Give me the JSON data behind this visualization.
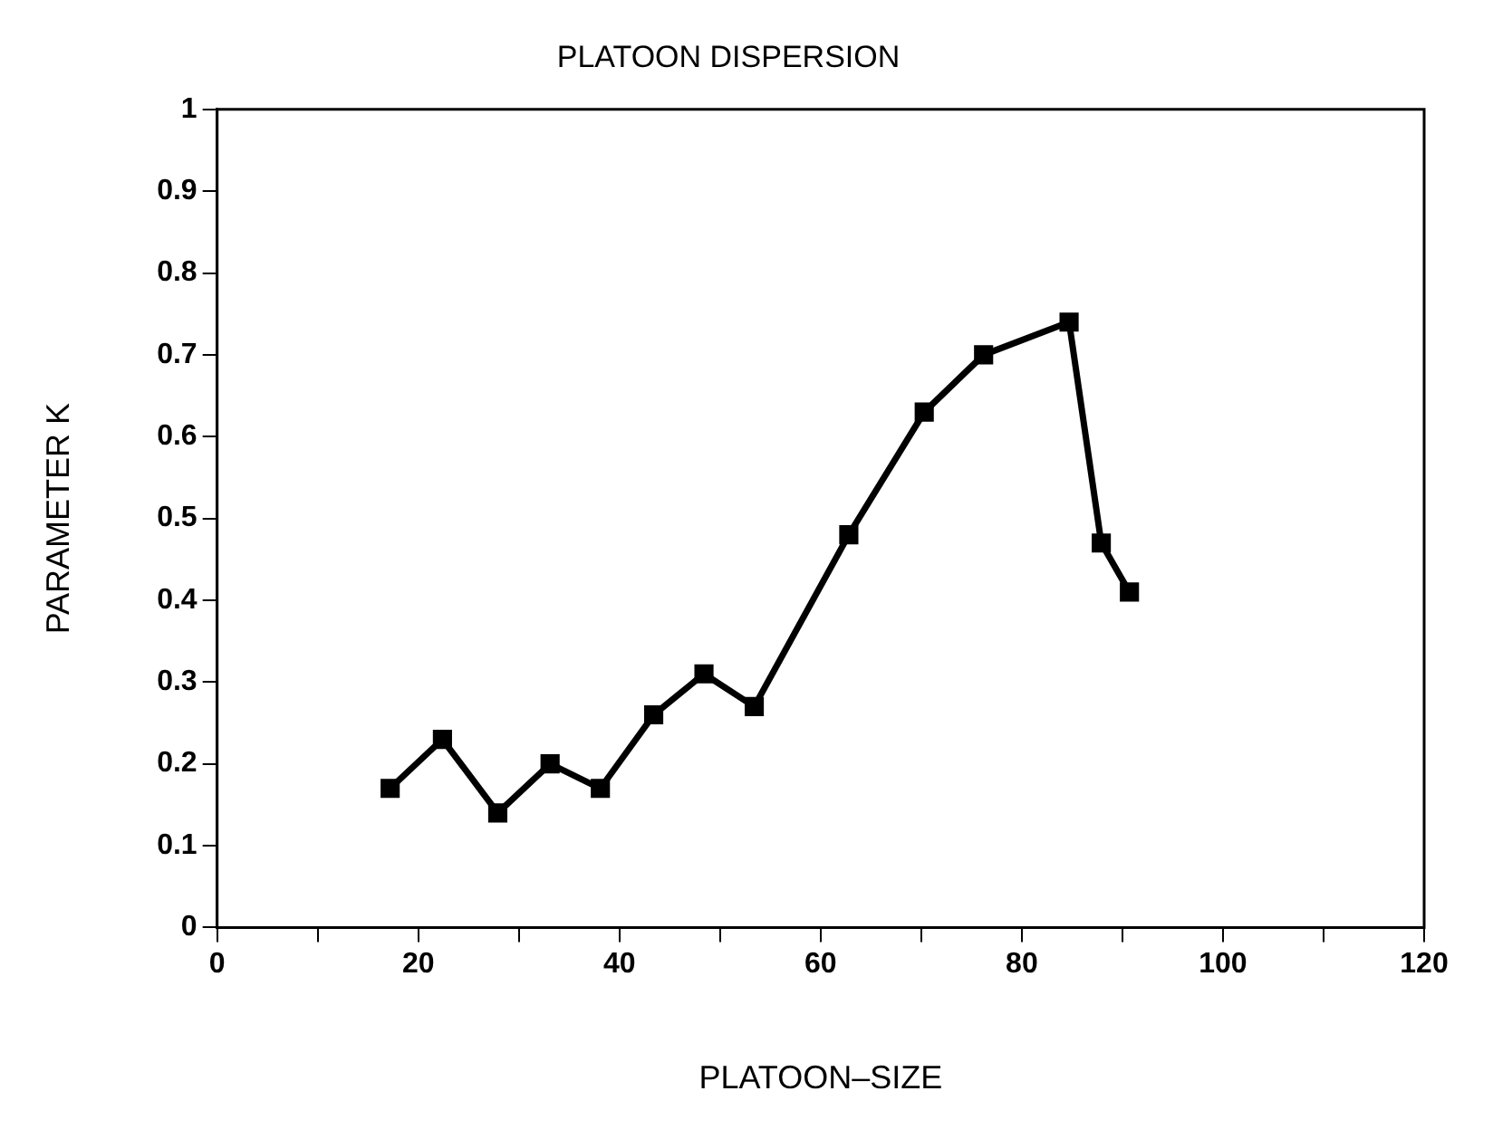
{
  "chart_data": {
    "type": "line",
    "title": "PLATOON DISPERSION",
    "xlabel": "PLATOON–SIZE",
    "ylabel": "PARAMETER K",
    "x": [
      17.2,
      22.4,
      27.9,
      33.1,
      38.1,
      43.4,
      48.4,
      53.4,
      62.8,
      70.3,
      76.2,
      84.7,
      87.9,
      90.7
    ],
    "series": [
      {
        "color": "#000000",
        "values": [
          0.17,
          0.23,
          0.14,
          0.2,
          0.17,
          0.26,
          0.31,
          0.27,
          0.48,
          0.63,
          0.7,
          0.74,
          0.47,
          0.41
        ]
      }
    ],
    "xlim": [
      0,
      120
    ],
    "xticks": [
      0,
      {
        "value": 10,
        "label": null
      },
      20,
      {
        "value": 30,
        "label": null
      },
      40,
      {
        "value": 50,
        "label": null
      },
      60,
      {
        "value": 70,
        "label": null
      },
      80,
      {
        "value": 90,
        "label": null
      },
      100,
      {
        "value": 110,
        "label": null
      },
      120
    ],
    "ylim": [
      0,
      1
    ],
    "yticks": [
      0,
      0.1,
      0.2,
      0.3,
      0.4,
      0.5,
      0.6,
      0.7,
      0.8,
      0.9,
      1
    ],
    "grid": false,
    "legend": false,
    "marker": "square",
    "line_style": "solid"
  }
}
